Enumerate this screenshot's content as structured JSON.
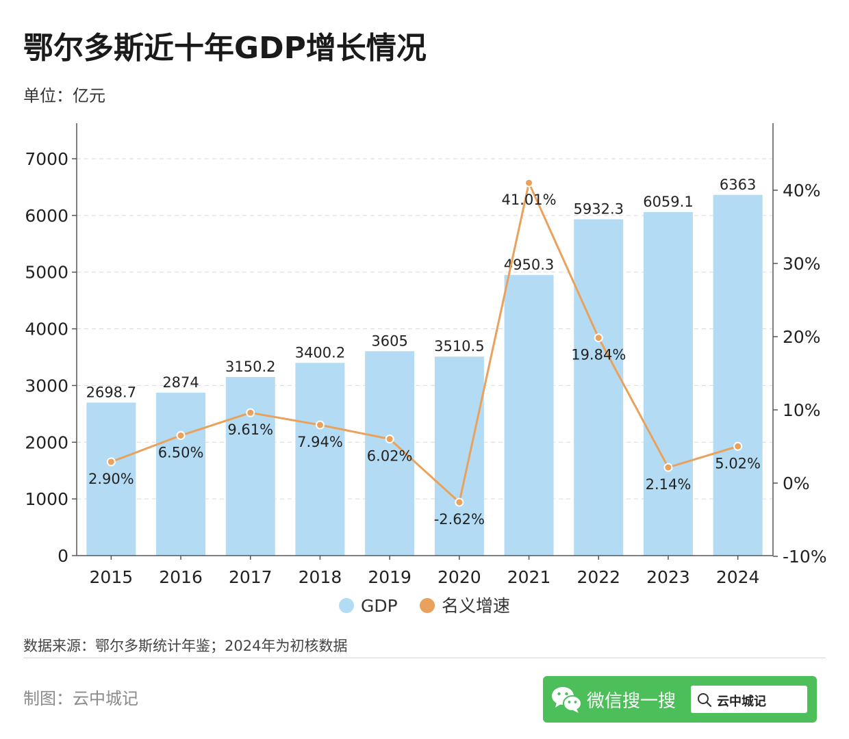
{
  "title": "鄂尔多斯近十年GDP增长情况",
  "unit": "单位：亿元",
  "source": "数据来源：鄂尔多斯统计年鉴；2024年为初核数据",
  "credit": "制图：云中城记",
  "wechat": {
    "label": "微信搜一搜",
    "search_text": "云中城记"
  },
  "colors": {
    "bar": "#b3dcf4",
    "line": "#e9a15c",
    "brand_green": "#4cbf5b"
  },
  "chart_data": {
    "type": "bar+line",
    "categories": [
      "2015",
      "2016",
      "2017",
      "2018",
      "2019",
      "2020",
      "2021",
      "2022",
      "2023",
      "2024"
    ],
    "series": [
      {
        "name": "GDP",
        "type": "bar",
        "axis": "left",
        "values": [
          2698.7,
          2874,
          3150.2,
          3400.2,
          3605,
          3510.5,
          4950.3,
          5932.3,
          6059.1,
          6363
        ],
        "labels": [
          "2698.7",
          "2874",
          "3150.2",
          "3400.2",
          "3605",
          "3510.5",
          "4950.3",
          "5932.3",
          "6059.1",
          "6363"
        ]
      },
      {
        "name": "名义增速",
        "type": "line",
        "axis": "right",
        "values": [
          2.9,
          6.5,
          9.61,
          7.94,
          6.02,
          -2.62,
          41.01,
          19.84,
          2.14,
          5.02
        ],
        "labels": [
          "2.90%",
          "6.50%",
          "9.61%",
          "7.94%",
          "6.02%",
          "-2.62%",
          "41.01%",
          "19.84%",
          "2.14%",
          "5.02%"
        ]
      }
    ],
    "y_left": {
      "range": [
        0,
        7000
      ],
      "ticks": [
        0,
        1000,
        2000,
        3000,
        4000,
        5000,
        6000,
        7000
      ],
      "tick_labels": [
        "0",
        "1000",
        "2000",
        "3000",
        "4000",
        "5000",
        "6000",
        "7000"
      ]
    },
    "y_right": {
      "range": [
        -10,
        44.5
      ],
      "ticks": [
        -10,
        0,
        10,
        20,
        30,
        40
      ],
      "tick_labels": [
        "-10%",
        "0%",
        "10%",
        "20%",
        "30%",
        "40%"
      ]
    },
    "grid": true,
    "legend": "bottom-center"
  }
}
